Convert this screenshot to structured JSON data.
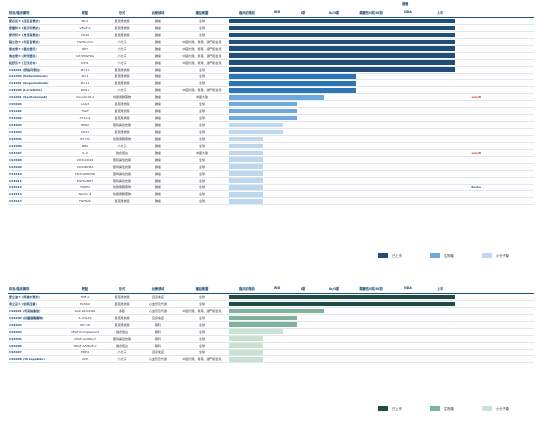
{
  "stage_group_label": "適應",
  "headers": [
    "核准/臨床藥物",
    "靶點",
    "形式",
    "治療領域",
    "權益範圍",
    "臨床前階段",
    "IND",
    "I期",
    "Ib/II期",
    "關鍵性II期/III期",
    "NDA",
    "上市"
  ],
  "colors": {
    "approved": "#1f4e79",
    "clinical": "#2e75b6",
    "mid": "#6fa8dc",
    "light": "#bdd7ee",
    "green_dark": "#1e4d45",
    "green_mid": "#7fb49a",
    "green_light": "#c8e3d2"
  },
  "table1": {
    "rows": [
      {
        "drug": "愛必妥® (西妥昔單抗)",
        "target": "PD-1",
        "form": "單克隆抗體",
        "area": "腫瘤",
        "rights": "全球",
        "phase": 1.0,
        "color": "approved",
        "note": "在大中華、馬來西亞及菲律賓上市 / 晚期肝細胞癌",
        "logo": ""
      },
      {
        "drug": "愛優特® (恩沃利單抗)",
        "target": "VEGF-A",
        "form": "單克隆抗體",
        "area": "腫瘤",
        "rights": "全球",
        "phase": 1.0,
        "color": "approved",
        "note": "在大中華上市：非小細胞肺癌、腎細胞癌",
        "logo": ""
      },
      {
        "drug": "愛貝特® (貝伐珠單抗)",
        "target": "CD20",
        "form": "單克隆抗體",
        "area": "腫瘤",
        "rights": "全球",
        "phase": 1.0,
        "color": "approved",
        "note": "在大中華上市：轉移性結直腸癌",
        "logo": ""
      },
      {
        "drug": "蘇立欣® (利妥昔單抗)",
        "target": "FGFR1/2/3",
        "form": "小分子",
        "area": "腫瘤",
        "rights": "中國大陸、香港、澳門和台灣",
        "phase": 1.0,
        "color": "approved",
        "note": "在大中華上市：彌漫大B細胞淋巴瘤",
        "logo": ""
      },
      {
        "drug": "普吉華® (普拉替尼)",
        "target": "RET",
        "form": "小分子",
        "area": "腫瘤",
        "rights": "中國大陸、香港、澳門和台灣",
        "phase": 1.0,
        "color": "approved",
        "note": "在大中華上市：RET融合陽性非小細胞肺癌",
        "logo": ""
      },
      {
        "drug": "泰吉華® (阿伐替尼)",
        "target": "KIT/PDGFRA",
        "form": "小分子",
        "area": "腫瘤",
        "rights": "中國大陸、香港、澳門和台灣",
        "phase": 1.0,
        "color": "approved",
        "note": "在大中華上市：胃腸道間質瘤",
        "logo": ""
      },
      {
        "drug": "拓舒沃® (艾伏尼布)",
        "target": "IDH1",
        "form": "小分子",
        "area": "腫瘤",
        "rights": "中國大陸、香港、澳門和台灣",
        "phase": 1.0,
        "color": "approved",
        "note": "在大中華上市：復發或難治性急性髓系白血病",
        "logo": ""
      },
      {
        "drug": "CS5001 (舒格利單抗)",
        "target": "PD-L1",
        "form": "單克隆抗體",
        "area": "腫瘤",
        "rights": "全球",
        "phase": 1.0,
        "color": "approved",
        "note": "在大中華上市：非小細胞肺癌、胃癌",
        "logo": ""
      },
      {
        "drug": "CS1003 (Nofazinlimab)",
        "target": "PD-1",
        "form": "單克隆抗體",
        "area": "腫瘤",
        "rights": "全球",
        "phase": 0.56,
        "color": "clinical",
        "note": "III期：肝細胞癌一線治療",
        "logo": ""
      },
      {
        "drug": "CS1001 (Sugemalimab)",
        "target": "PD-L1",
        "form": "單克隆抗體",
        "area": "腫瘤",
        "rights": "全球",
        "phase": 0.56,
        "color": "clinical",
        "note": "III期：食管鱗狀細胞癌一線治療",
        "logo": ""
      },
      {
        "drug": "CS5005 (Lorlatinib)",
        "target": "ROS1",
        "form": "小分子",
        "area": "腫瘤",
        "rights": "中國大陸、香港、澳門和台灣",
        "phase": 0.56,
        "color": "clinical",
        "note": "II期：ROS1陽性非小細胞肺癌",
        "logo": ""
      },
      {
        "drug": "CS1001 (Sacituzumab)",
        "target": "Claudin18.2",
        "form": "抗體偶聯藥物",
        "area": "腫瘤",
        "rights": "中國大陸",
        "phase": 0.42,
        "color": "mid",
        "note": "Ib/II期：胃癌或胃食管結合部腺癌",
        "logo": "sanofi"
      },
      {
        "drug": "CS5006",
        "target": "LAG3",
        "form": "單克隆抗體",
        "area": "腫瘤",
        "rights": "全球",
        "phase": 0.3,
        "color": "mid",
        "note": "I期：實體瘤",
        "logo": ""
      },
      {
        "drug": "CS1002",
        "target": "TIGIT",
        "form": "單克隆抗體",
        "area": "腫瘤",
        "rights": "全球",
        "phase": 0.3,
        "color": "mid",
        "note": "I期：實體瘤",
        "logo": ""
      },
      {
        "drug": "CS3002",
        "target": "CTLA-4",
        "form": "單克隆抗體",
        "area": "腫瘤",
        "rights": "全球",
        "phase": 0.3,
        "color": "mid",
        "note": "I期：實體瘤",
        "logo": ""
      },
      {
        "drug": "CS3003",
        "target": "HER2",
        "form": "雙特異性抗體",
        "area": "腫瘤",
        "rights": "全球",
        "phase": 0.24,
        "color": "light",
        "note": "IND",
        "logo": ""
      },
      {
        "drug": "CS3004",
        "target": "CD47",
        "form": "單克隆抗體",
        "area": "腫瘤",
        "rights": "全球",
        "phase": 0.24,
        "color": "light",
        "note": "IND",
        "logo": ""
      },
      {
        "drug": "CS3005",
        "target": "B7-H3",
        "form": "抗體偶聯藥物",
        "area": "腫瘤",
        "rights": "全球",
        "phase": 0.15,
        "color": "light",
        "note": "臨床前",
        "logo": ""
      },
      {
        "drug": "CS3006",
        "target": "MEK",
        "form": "小分子",
        "area": "腫瘤",
        "rights": "全球",
        "phase": 0.15,
        "color": "light",
        "note": "臨床前",
        "logo": ""
      },
      {
        "drug": "CS3007",
        "target": "IL-2",
        "form": "融合蛋白",
        "area": "腫瘤",
        "rights": "中國大陸",
        "phase": 0.15,
        "color": "light",
        "note": "臨床前",
        "logo": "sanofi"
      },
      {
        "drug": "CS3008",
        "target": "CD3xCD20",
        "form": "雙特異性抗體",
        "area": "腫瘤",
        "rights": "全球",
        "phase": 0.15,
        "color": "light",
        "note": "臨床前",
        "logo": ""
      },
      {
        "drug": "CS3009",
        "target": "CD3xBCMA",
        "form": "雙特異性抗體",
        "area": "腫瘤",
        "rights": "全球",
        "phase": 0.15,
        "color": "light",
        "note": "臨床前",
        "logo": ""
      },
      {
        "drug": "CS3010",
        "target": "CD3xGPRC5D",
        "form": "雙特異性抗體",
        "area": "腫瘤",
        "rights": "全球",
        "phase": 0.15,
        "color": "light",
        "note": "臨床前",
        "logo": ""
      },
      {
        "drug": "CS3011",
        "target": "EGFRxMET",
        "form": "雙特異性抗體",
        "area": "腫瘤",
        "rights": "全球",
        "phase": 0.15,
        "color": "light",
        "note": "臨床前",
        "logo": ""
      },
      {
        "drug": "CS3012",
        "target": "TROP2",
        "form": "抗體偶聯藥物",
        "area": "腫瘤",
        "rights": "全球",
        "phase": 0.15,
        "color": "light",
        "note": "臨床前",
        "logo": "Roche"
      },
      {
        "drug": "CS3013",
        "target": "Nectin-4",
        "form": "抗體偶聯藥物",
        "area": "腫瘤",
        "rights": "全球",
        "phase": 0.15,
        "color": "light",
        "note": "臨床前",
        "logo": ""
      },
      {
        "drug": "CS3014",
        "target": "FGFR2b",
        "form": "單克隆抗體",
        "area": "腫瘤",
        "rights": "全球",
        "phase": 0.15,
        "color": "light",
        "note": "臨床前",
        "logo": ""
      }
    ],
    "legend": [
      "已上市",
      "生物藥",
      "小分子藥"
    ]
  },
  "table2": {
    "rows": [
      {
        "drug": "愛立迪® (阿達木單抗)",
        "target": "TNF-α",
        "form": "單克隆抗體",
        "area": "自身免疫",
        "rights": "全球",
        "phase": 1.0,
        "color": "green_dark",
        "note": "在大中華上市：類風濕關節炎、強直性脊柱炎、銀屑病",
        "logo": ""
      },
      {
        "drug": "恩立妥® (依那西普)",
        "target": "PCSK9",
        "form": "單克隆抗體",
        "area": "心血管及代謝",
        "rights": "全球",
        "phase": 1.0,
        "color": "green_dark",
        "note": "在大中華上市：高膽固醇血症及混合型血脂異常",
        "logo": ""
      },
      {
        "drug": "CS6001 (司美格魯肽)",
        "target": "GLP-1R/GCGR",
        "form": "多肽",
        "area": "心血管及代謝",
        "rights": "中國大陸、香港、澳門和台灣",
        "phase": 0.42,
        "color": "green_mid",
        "note": "II期：肥胖症、2型糖尿病",
        "logo": ""
      },
      {
        "drug": "CS6002 (抗體偶聯藥物)",
        "target": "IL-23p19",
        "form": "單克隆抗體",
        "area": "自身免疫",
        "rights": "全球",
        "phase": 0.3,
        "color": "green_mid",
        "note": "I期：銀屑病",
        "logo": ""
      },
      {
        "drug": "CS6003",
        "target": "IGF-1R",
        "form": "單克隆抗體",
        "area": "眼科",
        "rights": "全球",
        "phase": 0.3,
        "color": "green_mid",
        "note": "I期：甲狀腺相關眼病",
        "logo": ""
      },
      {
        "drug": "CS6004",
        "target": "VEGF/Complement",
        "form": "融合蛋白",
        "area": "眼科",
        "rights": "全球",
        "phase": 0.24,
        "color": "green_light",
        "note": "IND：新生血管性年齡相關性黃斑變性",
        "logo": ""
      },
      {
        "drug": "CS6005",
        "target": "VEGF-A/ANG-2",
        "form": "雙特異性抗體",
        "area": "眼科",
        "rights": "全球",
        "phase": 0.15,
        "color": "green_light",
        "note": "臨床前：糖尿病黃斑水腫",
        "logo": ""
      },
      {
        "drug": "CS6006",
        "target": "VEGF-A/VEGF-C",
        "form": "融合蛋白",
        "area": "眼科",
        "rights": "全球",
        "phase": 0.15,
        "color": "green_light",
        "note": "臨床前：濕性年齡相關性黃斑變性",
        "logo": ""
      },
      {
        "drug": "CS6007",
        "target": "PDE4",
        "form": "小分子",
        "area": "自身免疫",
        "rights": "全球",
        "phase": 0.15,
        "color": "green_light",
        "note": "臨床前",
        "logo": ""
      },
      {
        "drug": "CS6008 (Tirzepatide)",
        "target": "ACE",
        "form": "小分子",
        "area": "心血管及代謝",
        "rights": "中國大陸、香港、澳門和台灣",
        "phase": 0.15,
        "color": "green_light",
        "note": "臨床前",
        "logo": ""
      }
    ],
    "legend": [
      "已上市",
      "生物藥",
      "小分子藥"
    ]
  }
}
